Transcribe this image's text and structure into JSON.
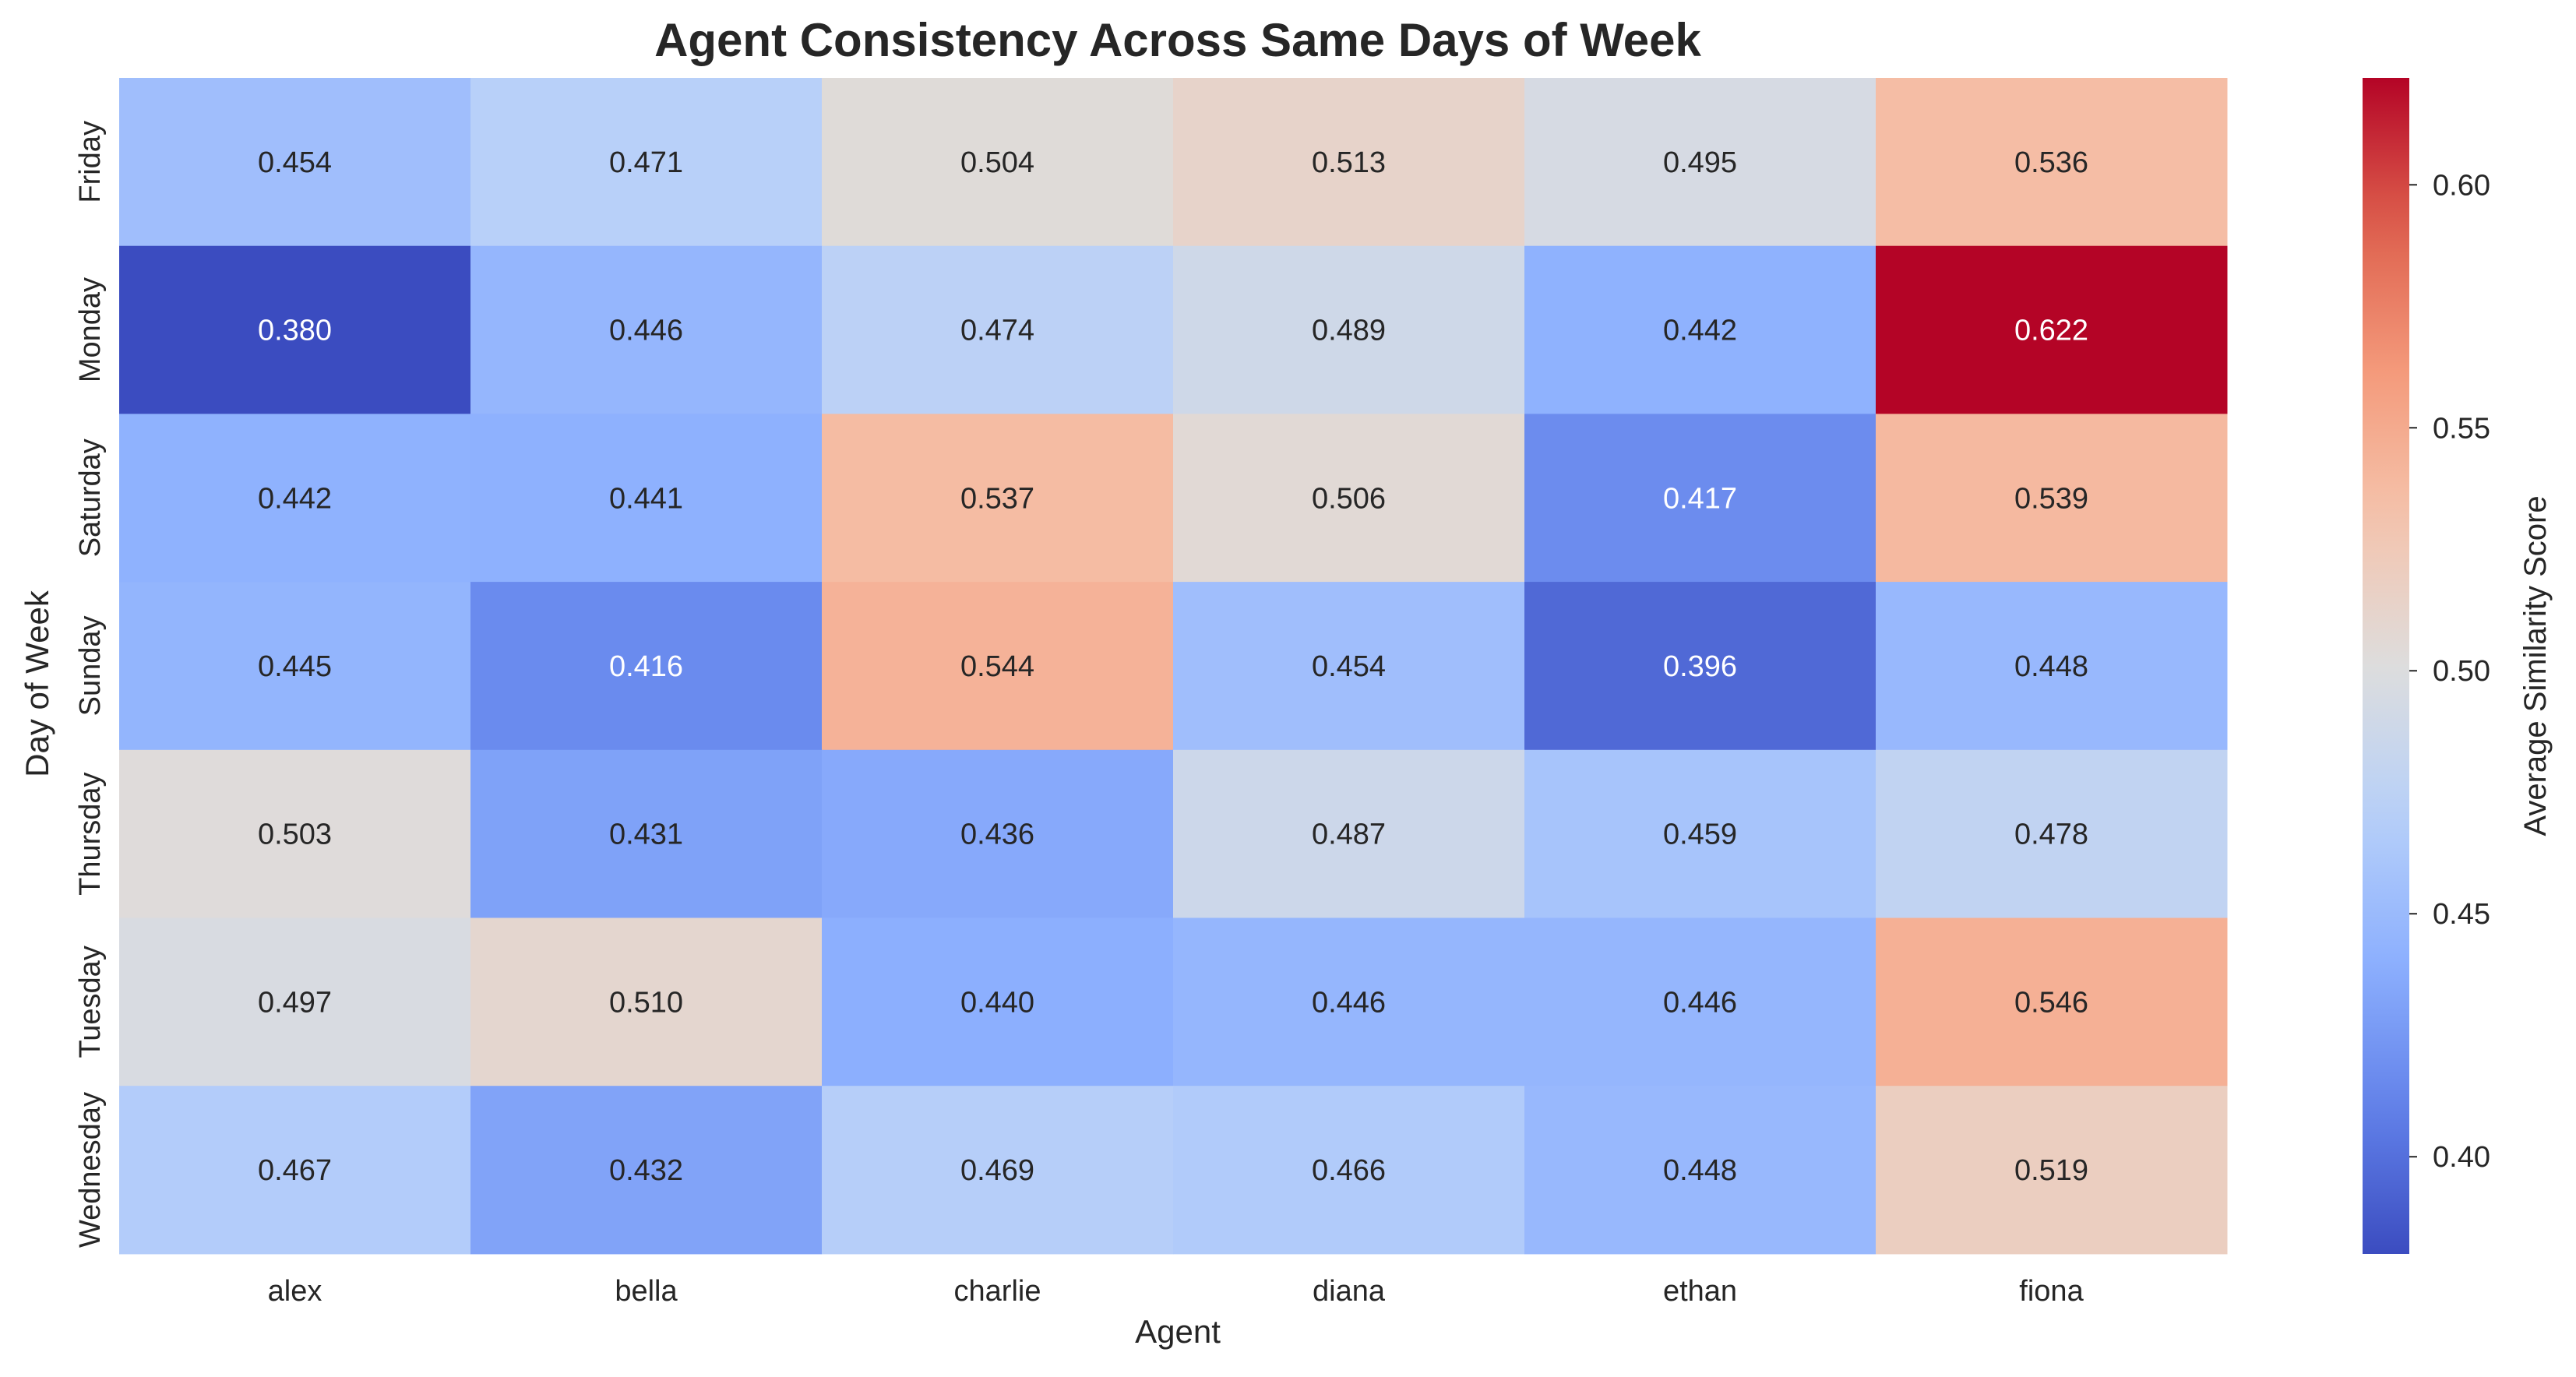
{
  "chart_data": {
    "type": "heatmap",
    "title": "Agent Consistency Across Same Days of Week",
    "xlabel": "Agent",
    "ylabel": "Day of Week",
    "colorbar_label": "Average Similarity Score",
    "colormap": "coolwarm",
    "colorbar_range": [
      0.38,
      0.622
    ],
    "colorbar_ticks": [
      0.4,
      0.45,
      0.5,
      0.55,
      0.6
    ],
    "colorbar_tick_labels": [
      "0.40",
      "0.45",
      "0.50",
      "0.55",
      "0.60"
    ],
    "x_categories": [
      "alex",
      "bella",
      "charlie",
      "diana",
      "ethan",
      "fiona"
    ],
    "y_categories": [
      "Friday",
      "Monday",
      "Saturday",
      "Sunday",
      "Thursday",
      "Tuesday",
      "Wednesday"
    ],
    "values": [
      [
        0.454,
        0.471,
        0.504,
        0.513,
        0.495,
        0.536
      ],
      [
        0.38,
        0.446,
        0.474,
        0.489,
        0.442,
        0.622
      ],
      [
        0.442,
        0.441,
        0.537,
        0.506,
        0.417,
        0.539
      ],
      [
        0.445,
        0.416,
        0.544,
        0.454,
        0.396,
        0.448
      ],
      [
        0.503,
        0.431,
        0.436,
        0.487,
        0.459,
        0.478
      ],
      [
        0.497,
        0.51,
        0.44,
        0.446,
        0.446,
        0.546
      ],
      [
        0.467,
        0.432,
        0.469,
        0.466,
        0.448,
        0.519
      ]
    ],
    "value_format": "3 decimals",
    "grid": false
  }
}
